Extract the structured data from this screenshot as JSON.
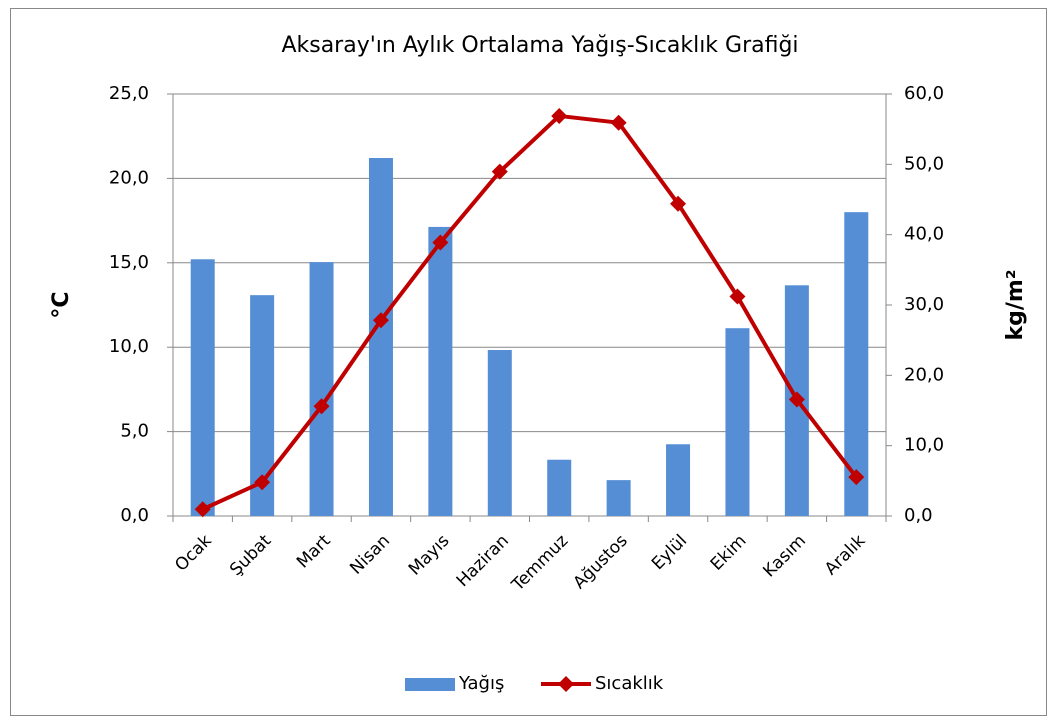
{
  "chart_data": {
    "type": "combo",
    "title": "Aksaray'ın Aylık Ortalama Yağış-Sıcaklık Grafiği",
    "categories": [
      "Ocak",
      "Şubat",
      "Mart",
      "Nisan",
      "Mayıs",
      "Haziran",
      "Temmuz",
      "Ağustos",
      "Eylül",
      "Ekim",
      "Kasım",
      "Aralık"
    ],
    "series": [
      {
        "name": "Yağış",
        "type": "bar",
        "axis": "y2",
        "color": "#558ed5",
        "values": [
          36.5,
          31.4,
          36.1,
          50.9,
          41.1,
          23.6,
          8.0,
          5.1,
          10.2,
          26.7,
          32.8,
          43.2
        ]
      },
      {
        "name": "Sıcaklık",
        "type": "line",
        "color": "#c00000",
        "values": [
          0.4,
          2.0,
          6.5,
          11.6,
          16.2,
          20.4,
          23.7,
          23.3,
          18.5,
          13.0,
          6.9,
          2.3
        ]
      }
    ],
    "ylabel": "°C",
    "y2label": "kg/m²",
    "ylim": [
      0,
      25
    ],
    "yticks": [
      {
        "value": 0,
        "label": "0,0"
      },
      {
        "value": 5,
        "label": "5,0"
      },
      {
        "value": 10,
        "label": "10,0"
      },
      {
        "value": 15,
        "label": "15,0"
      },
      {
        "value": 20,
        "label": "20,0"
      },
      {
        "value": 25,
        "label": "25,0"
      }
    ],
    "y2lim": [
      0,
      60
    ],
    "y2ticks": [
      {
        "value": 0,
        "label": "0,0"
      },
      {
        "value": 10,
        "label": "10,0"
      },
      {
        "value": 20,
        "label": "20,0"
      },
      {
        "value": 30,
        "label": "30,0"
      },
      {
        "value": 40,
        "label": "40,0"
      },
      {
        "value": 50,
        "label": "50,0"
      },
      {
        "value": 60,
        "label": "60,0"
      }
    ],
    "grid": true,
    "legend": "bottom"
  }
}
